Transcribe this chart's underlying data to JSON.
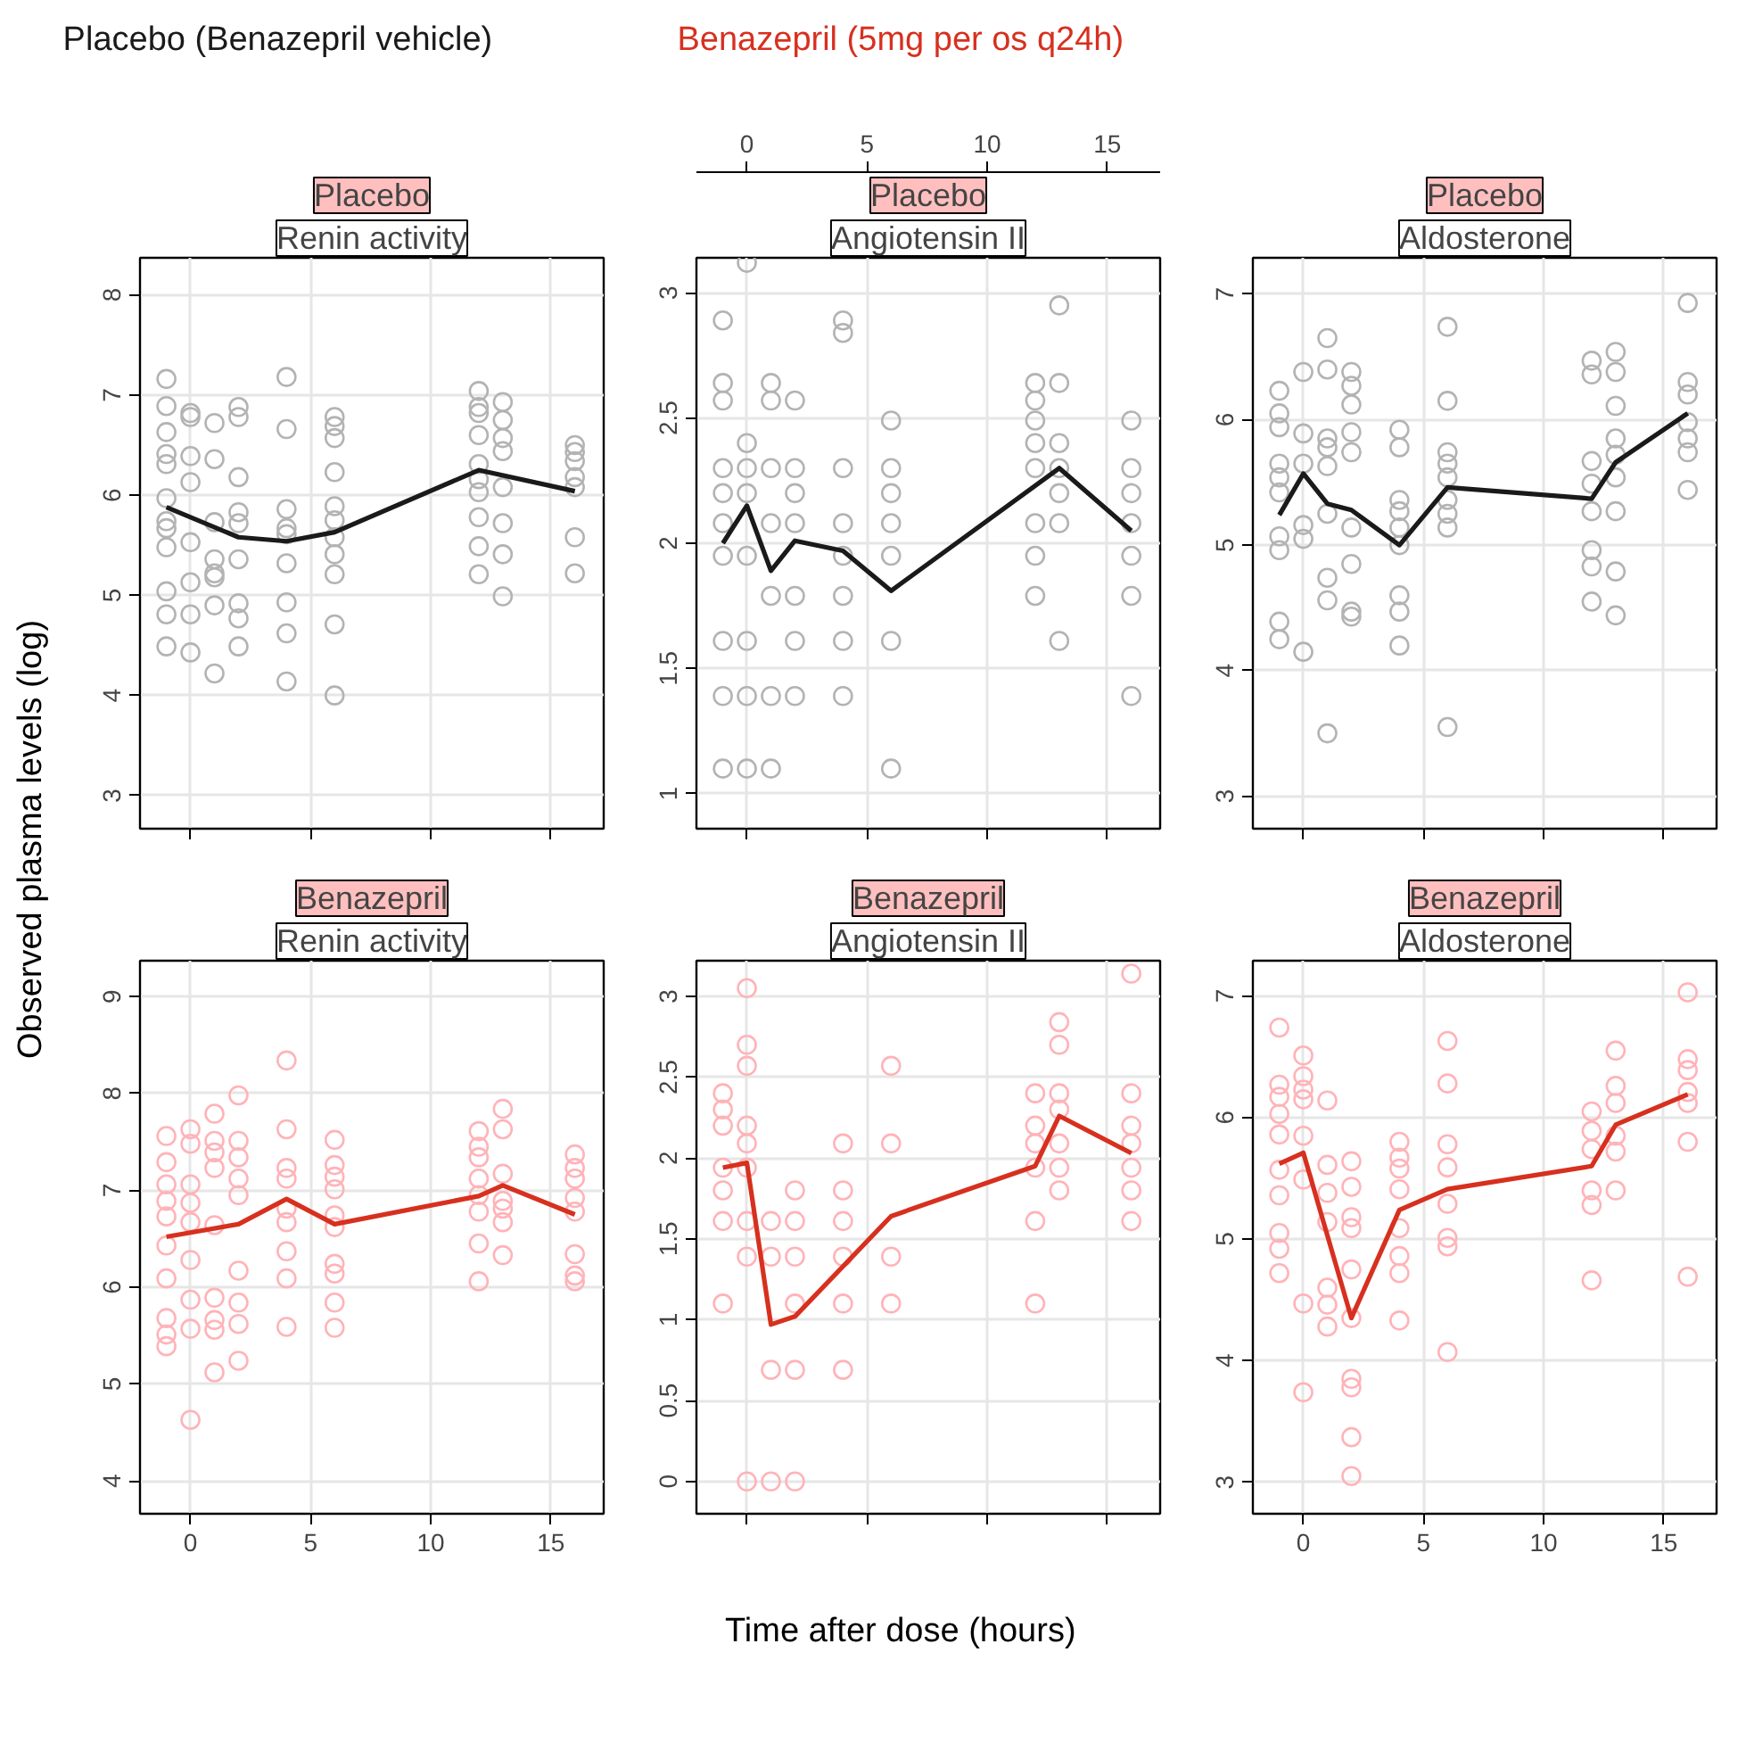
{
  "chart_data": [
    {
      "type": "line",
      "title": "Placebo",
      "subtitle": "Renin activity",
      "ylabel": "Observed plasma levels (log)",
      "legend": "top",
      "grid": true,
      "tick_labels": "y",
      "xlim": [
        -2.1,
        17.2
      ],
      "xticks": [
        0,
        5,
        10,
        15
      ],
      "ylim": [
        2.67,
        8.37
      ],
      "yticks": [
        3,
        4,
        5,
        6,
        7,
        8
      ],
      "series": [
        {
          "type": "scatter",
          "marker": "circle",
          "color": "#b3b3b3",
          "x": [
            -1,
            -1,
            -1,
            -1,
            -1,
            -1,
            -1,
            -1,
            -1,
            -1,
            -1,
            -1,
            0,
            0,
            0,
            0,
            0,
            0,
            0,
            0,
            1,
            1,
            1,
            1,
            1,
            1,
            1,
            1,
            2,
            2,
            2,
            2,
            2,
            2,
            2,
            2,
            2,
            4,
            4,
            4,
            4,
            4,
            4,
            4,
            4,
            4,
            6,
            6,
            6,
            6,
            6,
            6,
            6,
            6,
            6,
            6,
            6,
            12,
            12,
            12,
            12,
            12,
            12,
            12,
            12,
            12,
            12,
            13,
            13,
            13,
            13,
            13,
            13,
            13,
            13,
            16,
            16,
            16,
            16,
            16,
            16,
            16
          ],
          "values": [
            7.16,
            6.89,
            6.63,
            6.41,
            6.31,
            5.97,
            5.74,
            5.67,
            5.48,
            5.04,
            4.81,
            4.49,
            6.82,
            6.78,
            6.39,
            6.13,
            5.53,
            5.13,
            4.81,
            4.43,
            6.72,
            6.36,
            5.73,
            5.36,
            5.22,
            5.18,
            4.9,
            4.22,
            6.88,
            6.78,
            6.18,
            5.83,
            5.72,
            5.36,
            4.92,
            4.77,
            4.49,
            7.18,
            6.66,
            5.86,
            5.67,
            5.61,
            5.32,
            4.93,
            4.62,
            4.14,
            6.78,
            6.69,
            6.57,
            6.23,
            5.89,
            5.75,
            5.58,
            5.41,
            5.21,
            4.71,
            4.0,
            7.04,
            6.88,
            6.82,
            6.6,
            6.31,
            6.16,
            6.03,
            5.78,
            5.49,
            5.21,
            6.93,
            6.75,
            6.57,
            6.44,
            6.08,
            5.72,
            5.41,
            4.99,
            6.5,
            6.43,
            6.34,
            6.18,
            6.08,
            5.58,
            5.22
          ]
        },
        {
          "name": "Placebo (Benazepril vehicle)",
          "color": "#1a1a1a",
          "x": [
            -1,
            2,
            4,
            6,
            12,
            16
          ],
          "values": [
            5.88,
            5.58,
            5.54,
            5.63,
            6.25,
            6.04
          ]
        }
      ]
    },
    {
      "type": "line",
      "title": "Placebo",
      "subtitle": "Angiotensin II",
      "grid": true,
      "tick_labels": "y",
      "xlim": [
        -2.1,
        17.2
      ],
      "xticks": [
        0,
        5,
        10,
        15
      ],
      "x2lim": [
        -2.1,
        17.2
      ],
      "x2ticks": [
        0,
        5,
        10,
        15
      ],
      "ylim": [
        0.86,
        3.14
      ],
      "yticks": [
        1.0,
        1.5,
        2.0,
        2.5,
        3.0
      ],
      "series": [
        {
          "type": "scatter",
          "marker": "circle",
          "color": "#b3b3b3",
          "x": [
            -1,
            -1,
            -1,
            -1,
            -1,
            -1,
            -1,
            -1,
            -1,
            -1,
            0,
            0,
            0,
            0,
            0,
            0,
            0,
            0,
            1,
            1,
            1,
            1,
            1,
            1,
            1,
            2,
            2,
            2,
            2,
            2,
            2,
            2,
            4,
            4,
            4,
            4,
            4,
            4,
            4,
            4,
            6,
            6,
            6,
            6,
            6,
            6,
            6,
            12,
            12,
            12,
            12,
            12,
            12,
            12,
            12,
            13,
            13,
            13,
            13,
            13,
            13,
            13,
            16,
            16,
            16,
            16,
            16,
            16,
            16
          ],
          "values": [
            2.89,
            2.64,
            2.57,
            2.3,
            2.2,
            2.08,
            1.95,
            1.61,
            1.39,
            1.1,
            3.12,
            2.4,
            2.3,
            2.2,
            1.95,
            1.61,
            1.39,
            1.1,
            2.64,
            2.57,
            2.3,
            2.08,
            1.79,
            1.39,
            1.1,
            2.57,
            2.3,
            2.2,
            2.08,
            1.79,
            1.61,
            1.39,
            2.89,
            2.84,
            2.3,
            2.08,
            1.95,
            1.79,
            1.61,
            1.39,
            2.49,
            2.3,
            2.2,
            2.08,
            1.95,
            1.61,
            1.1,
            2.64,
            2.57,
            2.49,
            2.4,
            2.3,
            2.08,
            1.95,
            1.79,
            2.95,
            2.64,
            2.4,
            2.3,
            2.2,
            2.08,
            1.61,
            2.49,
            2.3,
            2.2,
            2.08,
            1.95,
            1.79,
            1.39
          ]
        },
        {
          "color": "#1a1a1a",
          "x": [
            -1,
            0,
            1,
            2,
            4,
            6,
            13,
            16
          ],
          "values": [
            2.0,
            2.15,
            1.89,
            2.01,
            1.97,
            1.81,
            2.3,
            2.05
          ]
        }
      ]
    },
    {
      "type": "line",
      "title": "Placebo",
      "subtitle": "Aldosterone",
      "grid": true,
      "tick_labels": "y",
      "xlim": [
        -2.1,
        17.2
      ],
      "xticks": [
        0,
        5,
        10,
        15
      ],
      "ylim": [
        2.74,
        7.29
      ],
      "yticks": [
        3,
        4,
        5,
        6,
        7
      ],
      "series": [
        {
          "type": "scatter",
          "marker": "circle",
          "color": "#b3b3b3",
          "x": [
            -1,
            -1,
            -1,
            -1,
            -1,
            -1,
            -1,
            -1,
            -1,
            -1,
            0,
            0,
            0,
            0,
            0,
            0,
            1,
            1,
            1,
            1,
            1,
            1,
            1,
            1,
            1,
            2,
            2,
            2,
            2,
            2,
            2,
            2,
            2,
            2,
            4,
            4,
            4,
            4,
            4,
            4,
            4,
            4,
            4,
            6,
            6,
            6,
            6,
            6,
            6,
            6,
            6,
            6,
            12,
            12,
            12,
            12,
            12,
            12,
            12,
            12,
            13,
            13,
            13,
            13,
            13,
            13,
            13,
            13,
            13,
            16,
            16,
            16,
            16,
            16,
            16,
            16
          ],
          "values": [
            6.23,
            6.05,
            5.94,
            5.65,
            5.54,
            5.42,
            5.07,
            4.96,
            4.39,
            4.25,
            6.38,
            5.89,
            5.65,
            5.16,
            5.05,
            4.15,
            6.65,
            6.4,
            5.85,
            5.78,
            5.63,
            5.25,
            4.74,
            4.56,
            3.5,
            6.38,
            6.27,
            6.12,
            5.9,
            5.74,
            5.14,
            4.85,
            4.47,
            4.43,
            5.92,
            5.78,
            5.36,
            5.27,
            5.14,
            5.0,
            4.6,
            4.47,
            4.2,
            6.74,
            6.15,
            5.74,
            5.65,
            5.54,
            5.36,
            5.25,
            5.14,
            3.55,
            6.47,
            6.36,
            5.67,
            5.49,
            5.27,
            4.96,
            4.83,
            4.55,
            6.54,
            6.38,
            6.11,
            5.85,
            5.72,
            5.54,
            5.27,
            4.79,
            4.44,
            6.93,
            6.3,
            6.2,
            5.98,
            5.85,
            5.74,
            5.44
          ]
        },
        {
          "color": "#1a1a1a",
          "x": [
            -1,
            0,
            1,
            2,
            4,
            6,
            12,
            13,
            16
          ],
          "values": [
            5.24,
            5.57,
            5.33,
            5.28,
            5.0,
            5.46,
            5.37,
            5.66,
            6.05
          ]
        }
      ]
    },
    {
      "type": "line",
      "title": "Benazepril",
      "subtitle": "Renin activity",
      "grid": true,
      "xlim": [
        -2.1,
        17.2
      ],
      "xticks": [
        0,
        5,
        10,
        15
      ],
      "ylim": [
        3.66,
        9.37
      ],
      "yticks": [
        4,
        5,
        6,
        7,
        8,
        9
      ],
      "series": [
        {
          "type": "scatter",
          "marker": "circle",
          "color": "#ffb3b8",
          "x": [
            -1,
            -1,
            -1,
            -1,
            -1,
            -1,
            -1,
            -1,
            -1,
            -1,
            0,
            0,
            0,
            0,
            0,
            0,
            0,
            0,
            0,
            1,
            1,
            1,
            1,
            1,
            1,
            1,
            1,
            1,
            2,
            2,
            2,
            2,
            2,
            2,
            2,
            2,
            2,
            4,
            4,
            4,
            4,
            4,
            4,
            4,
            4,
            4,
            6,
            6,
            6,
            6,
            6,
            6,
            6,
            6,
            6,
            6,
            12,
            12,
            12,
            12,
            12,
            12,
            12,
            12,
            13,
            13,
            13,
            13,
            13,
            13,
            13,
            16,
            16,
            16,
            16,
            16,
            16,
            16,
            16
          ],
          "values": [
            7.56,
            7.29,
            7.06,
            6.89,
            6.73,
            6.43,
            6.09,
            5.68,
            5.51,
            5.39,
            7.63,
            7.48,
            7.06,
            6.87,
            6.67,
            6.28,
            5.87,
            5.57,
            4.63,
            7.79,
            7.51,
            7.39,
            7.23,
            6.64,
            5.89,
            5.66,
            5.56,
            5.12,
            7.98,
            7.51,
            7.34,
            7.12,
            6.95,
            6.17,
            5.84,
            5.62,
            5.24,
            8.34,
            7.63,
            7.23,
            7.12,
            6.81,
            6.67,
            6.37,
            6.09,
            5.59,
            7.52,
            7.26,
            7.14,
            7.01,
            6.74,
            6.62,
            6.24,
            6.14,
            5.84,
            5.58,
            7.61,
            7.45,
            7.34,
            7.12,
            6.95,
            6.78,
            6.45,
            6.06,
            7.84,
            7.63,
            7.17,
            6.89,
            6.81,
            6.67,
            6.33,
            7.37,
            7.23,
            7.12,
            6.92,
            6.78,
            6.34,
            6.12,
            6.06
          ]
        },
        {
          "name": "Benazepril (5mg per os q24h)",
          "color": "#d7301f",
          "x": [
            -1,
            2,
            4,
            6,
            12,
            13,
            16
          ],
          "values": [
            6.52,
            6.65,
            6.91,
            6.65,
            6.94,
            7.05,
            6.75
          ]
        }
      ]
    },
    {
      "type": "line",
      "title": "Benazepril",
      "subtitle": "Angiotensin II",
      "xlabel": "Time after dose (hours)",
      "grid": true,
      "tick_labels": "y",
      "xlim": [
        -2.1,
        17.2
      ],
      "xticks": [
        0,
        5,
        10,
        15
      ],
      "ylim": [
        -0.2,
        3.22
      ],
      "yticks": [
        0.0,
        0.5,
        1.0,
        1.5,
        2.0,
        2.5,
        3.0
      ],
      "series": [
        {
          "type": "scatter",
          "marker": "circle",
          "color": "#ffb3b8",
          "x": [
            -1,
            -1,
            -1,
            -1,
            -1,
            -1,
            -1,
            0,
            0,
            0,
            0,
            0,
            0,
            0,
            0,
            0,
            1,
            1,
            1,
            1,
            2,
            2,
            2,
            2,
            2,
            2,
            4,
            4,
            4,
            4,
            4,
            4,
            6,
            6,
            6,
            6,
            12,
            12,
            12,
            12,
            12,
            12,
            13,
            13,
            13,
            13,
            13,
            13,
            13,
            16,
            16,
            16,
            16,
            16,
            16,
            16
          ],
          "values": [
            2.4,
            2.3,
            2.2,
            1.94,
            1.8,
            1.61,
            1.1,
            3.05,
            2.7,
            2.57,
            2.2,
            2.09,
            1.94,
            1.61,
            1.39,
            0.0,
            1.61,
            1.39,
            0.69,
            0.0,
            1.8,
            1.61,
            1.39,
            1.1,
            0.69,
            0.0,
            2.09,
            1.8,
            1.61,
            1.39,
            1.1,
            0.69,
            2.57,
            2.09,
            1.39,
            1.1,
            2.4,
            2.2,
            2.09,
            1.94,
            1.61,
            1.1,
            2.84,
            2.7,
            2.4,
            2.3,
            2.09,
            1.94,
            1.8,
            3.14,
            2.4,
            2.2,
            2.09,
            1.94,
            1.8,
            1.61
          ]
        },
        {
          "color": "#d7301f",
          "x": [
            -1,
            0,
            1,
            2,
            6,
            12,
            13,
            16
          ],
          "values": [
            1.94,
            1.97,
            0.97,
            1.02,
            1.64,
            1.95,
            2.26,
            2.03
          ]
        }
      ]
    },
    {
      "type": "line",
      "title": "Benazepril",
      "subtitle": "Aldosterone",
      "grid": true,
      "xlim": [
        -2.1,
        17.2
      ],
      "xticks": [
        0,
        5,
        10,
        15
      ],
      "ylim": [
        2.74,
        7.29
      ],
      "yticks": [
        3,
        4,
        5,
        6,
        7
      ],
      "series": [
        {
          "type": "scatter",
          "marker": "circle",
          "color": "#ffb3b8",
          "x": [
            -1,
            -1,
            -1,
            -1,
            -1,
            -1,
            -1,
            -1,
            -1,
            -1,
            0,
            0,
            0,
            0,
            0,
            0,
            0,
            0,
            1,
            1,
            1,
            1,
            1,
            1,
            1,
            2,
            2,
            2,
            2,
            2,
            2,
            2,
            2,
            2,
            2,
            4,
            4,
            4,
            4,
            4,
            4,
            4,
            4,
            6,
            6,
            6,
            6,
            6,
            6,
            6,
            6,
            12,
            12,
            12,
            12,
            12,
            12,
            13,
            13,
            13,
            13,
            13,
            13,
            16,
            16,
            16,
            16,
            16,
            16,
            16
          ],
          "values": [
            6.74,
            6.27,
            6.17,
            6.03,
            5.86,
            5.57,
            5.36,
            5.05,
            4.92,
            4.72,
            6.51,
            6.34,
            6.23,
            6.15,
            5.85,
            5.49,
            4.47,
            3.74,
            6.14,
            5.61,
            5.38,
            5.14,
            4.6,
            4.46,
            4.28,
            5.64,
            5.43,
            5.18,
            5.09,
            4.75,
            4.35,
            3.85,
            3.78,
            3.37,
            3.05,
            5.8,
            5.67,
            5.58,
            5.41,
            5.09,
            4.86,
            4.72,
            4.33,
            6.63,
            6.28,
            5.78,
            5.59,
            5.29,
            5.01,
            4.94,
            4.07,
            6.05,
            5.89,
            5.74,
            5.4,
            5.28,
            4.66,
            6.55,
            6.26,
            6.12,
            5.85,
            5.72,
            5.4,
            7.03,
            6.48,
            6.39,
            6.21,
            6.12,
            5.8,
            4.69
          ]
        },
        {
          "color": "#d7301f",
          "x": [
            -1,
            0,
            2,
            4,
            6,
            12,
            13,
            16
          ],
          "values": [
            5.62,
            5.71,
            4.35,
            5.24,
            5.41,
            5.6,
            5.94,
            6.19
          ]
        }
      ]
    }
  ]
}
